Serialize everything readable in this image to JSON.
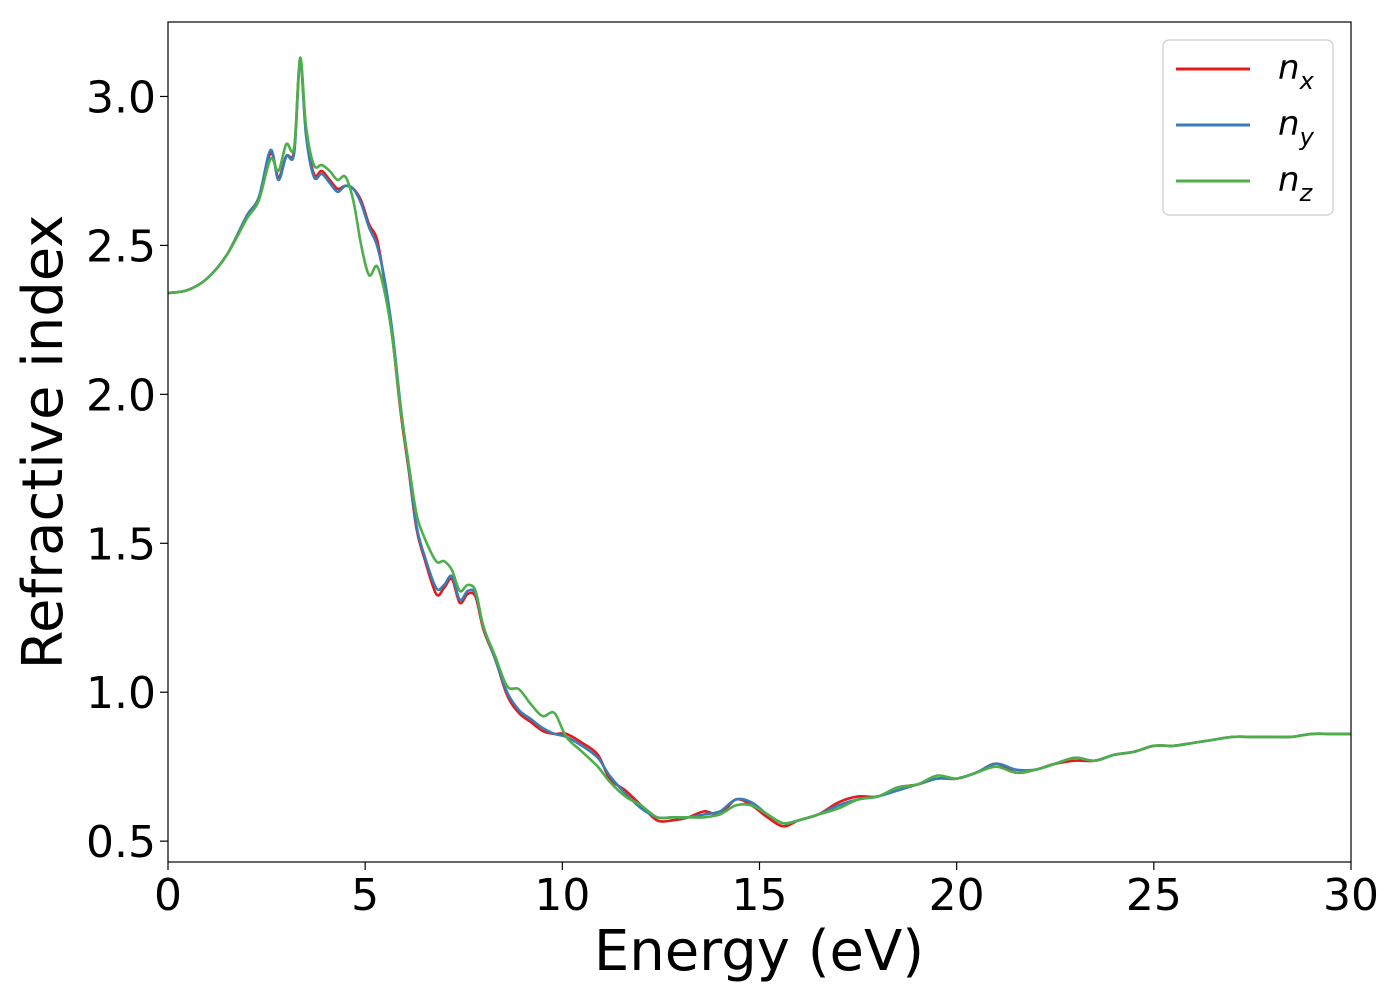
{
  "chart_data": {
    "type": "line",
    "title": "",
    "xlabel": "Energy (eV)",
    "ylabel": "Refractive index",
    "xlim": [
      0,
      30
    ],
    "ylim": [
      0.43,
      3.25
    ],
    "xticks": [
      "0",
      "5",
      "10",
      "15",
      "20",
      "25",
      "30"
    ],
    "yticks": [
      "0.5",
      "1.0",
      "1.5",
      "2.0",
      "2.5",
      "3.0"
    ],
    "grid": false,
    "legend_position": "top-right",
    "series": [
      {
        "name": "n_x",
        "legend_base": "n",
        "legend_sub": "x",
        "color": "#e41a1c",
        "x": [
          0,
          0.5,
          1.0,
          1.5,
          2.0,
          2.3,
          2.6,
          2.8,
          3.0,
          3.2,
          3.35,
          3.5,
          3.7,
          3.9,
          4.1,
          4.3,
          4.5,
          4.7,
          4.9,
          5.1,
          5.3,
          5.5,
          5.7,
          5.9,
          6.1,
          6.3,
          6.5,
          6.8,
          7.0,
          7.2,
          7.4,
          7.6,
          7.8,
          8.0,
          8.3,
          8.6,
          8.9,
          9.2,
          9.5,
          9.8,
          10.1,
          10.5,
          10.9,
          11.2,
          11.6,
          12.0,
          12.4,
          12.8,
          13.2,
          13.6,
          14.0,
          14.4,
          14.8,
          15.2,
          15.6,
          16.0,
          16.5,
          17.0,
          17.5,
          18.0,
          18.5,
          19.0,
          19.5,
          20.0,
          20.5,
          21.0,
          21.5,
          22.0,
          22.5,
          23.0,
          23.5,
          24.0,
          24.5,
          25.0,
          25.5,
          26.0,
          26.5,
          27.0,
          27.5,
          28.0,
          28.5,
          29.0,
          29.5,
          30.0
        ],
        "y": [
          2.34,
          2.35,
          2.39,
          2.47,
          2.6,
          2.66,
          2.81,
          2.73,
          2.8,
          2.82,
          3.12,
          2.88,
          2.74,
          2.75,
          2.72,
          2.69,
          2.7,
          2.69,
          2.65,
          2.57,
          2.52,
          2.37,
          2.18,
          1.94,
          1.75,
          1.55,
          1.45,
          1.33,
          1.35,
          1.38,
          1.3,
          1.33,
          1.32,
          1.21,
          1.11,
          0.99,
          0.93,
          0.9,
          0.87,
          0.86,
          0.86,
          0.83,
          0.79,
          0.71,
          0.67,
          0.62,
          0.57,
          0.57,
          0.58,
          0.6,
          0.59,
          0.64,
          0.62,
          0.58,
          0.55,
          0.57,
          0.59,
          0.63,
          0.65,
          0.65,
          0.68,
          0.69,
          0.71,
          0.71,
          0.73,
          0.76,
          0.73,
          0.74,
          0.76,
          0.77,
          0.77,
          0.79,
          0.8,
          0.82,
          0.82,
          0.83,
          0.84,
          0.85,
          0.85,
          0.85,
          0.85,
          0.86,
          0.86,
          0.86
        ]
      },
      {
        "name": "n_y",
        "legend_base": "n",
        "legend_sub": "y",
        "color": "#377eb8",
        "x": [
          0,
          0.5,
          1.0,
          1.5,
          2.0,
          2.3,
          2.6,
          2.8,
          3.0,
          3.2,
          3.35,
          3.5,
          3.7,
          3.9,
          4.1,
          4.3,
          4.5,
          4.7,
          4.9,
          5.1,
          5.3,
          5.5,
          5.7,
          5.9,
          6.1,
          6.3,
          6.5,
          6.8,
          7.0,
          7.2,
          7.4,
          7.6,
          7.8,
          8.0,
          8.3,
          8.6,
          8.9,
          9.2,
          9.5,
          9.8,
          10.1,
          10.5,
          10.9,
          11.2,
          11.6,
          12.0,
          12.4,
          12.8,
          13.2,
          13.6,
          14.0,
          14.4,
          14.8,
          15.2,
          15.6,
          16.0,
          16.5,
          17.0,
          17.5,
          18.0,
          18.5,
          19.0,
          19.5,
          20.0,
          20.5,
          21.0,
          21.5,
          22.0,
          22.5,
          23.0,
          23.5,
          24.0,
          24.5,
          25.0,
          25.5,
          26.0,
          26.5,
          27.0,
          27.5,
          28.0,
          28.5,
          29.0,
          29.5,
          30.0
        ],
        "y": [
          2.34,
          2.35,
          2.39,
          2.47,
          2.6,
          2.66,
          2.82,
          2.72,
          2.8,
          2.81,
          3.12,
          2.87,
          2.73,
          2.74,
          2.71,
          2.68,
          2.7,
          2.69,
          2.64,
          2.56,
          2.5,
          2.38,
          2.2,
          1.96,
          1.76,
          1.56,
          1.46,
          1.35,
          1.36,
          1.39,
          1.31,
          1.34,
          1.33,
          1.22,
          1.11,
          1.0,
          0.94,
          0.91,
          0.88,
          0.86,
          0.85,
          0.82,
          0.78,
          0.72,
          0.66,
          0.61,
          0.58,
          0.58,
          0.58,
          0.59,
          0.6,
          0.64,
          0.63,
          0.59,
          0.56,
          0.57,
          0.59,
          0.62,
          0.64,
          0.65,
          0.67,
          0.69,
          0.71,
          0.71,
          0.73,
          0.76,
          0.74,
          0.74,
          0.76,
          0.78,
          0.77,
          0.79,
          0.8,
          0.82,
          0.82,
          0.83,
          0.84,
          0.85,
          0.85,
          0.85,
          0.85,
          0.86,
          0.86,
          0.86
        ]
      },
      {
        "name": "n_z",
        "legend_base": "n",
        "legend_sub": "z",
        "color": "#4daf4a",
        "x": [
          0,
          0.5,
          1.0,
          1.5,
          2.0,
          2.3,
          2.6,
          2.8,
          3.0,
          3.2,
          3.35,
          3.5,
          3.7,
          3.9,
          4.1,
          4.3,
          4.5,
          4.7,
          4.9,
          5.1,
          5.3,
          5.5,
          5.7,
          5.9,
          6.1,
          6.3,
          6.5,
          6.8,
          7.0,
          7.2,
          7.4,
          7.6,
          7.8,
          8.0,
          8.3,
          8.6,
          8.9,
          9.2,
          9.5,
          9.8,
          10.1,
          10.5,
          10.9,
          11.2,
          11.6,
          12.0,
          12.4,
          12.8,
          13.2,
          13.6,
          14.0,
          14.4,
          14.8,
          15.2,
          15.6,
          16.0,
          16.5,
          17.0,
          17.5,
          18.0,
          18.5,
          19.0,
          19.5,
          20.0,
          20.5,
          21.0,
          21.5,
          22.0,
          22.5,
          23.0,
          23.5,
          24.0,
          24.5,
          25.0,
          25.5,
          26.0,
          26.5,
          27.0,
          27.5,
          28.0,
          28.5,
          29.0,
          29.5,
          30.0
        ],
        "y": [
          2.34,
          2.35,
          2.39,
          2.47,
          2.59,
          2.65,
          2.79,
          2.75,
          2.84,
          2.83,
          3.13,
          2.9,
          2.77,
          2.77,
          2.75,
          2.72,
          2.73,
          2.65,
          2.5,
          2.4,
          2.43,
          2.34,
          2.18,
          1.95,
          1.77,
          1.6,
          1.52,
          1.44,
          1.44,
          1.41,
          1.34,
          1.36,
          1.34,
          1.22,
          1.12,
          1.02,
          1.01,
          0.96,
          0.92,
          0.93,
          0.85,
          0.8,
          0.75,
          0.7,
          0.65,
          0.62,
          0.58,
          0.58,
          0.58,
          0.58,
          0.59,
          0.62,
          0.62,
          0.59,
          0.56,
          0.57,
          0.59,
          0.61,
          0.64,
          0.65,
          0.68,
          0.69,
          0.72,
          0.71,
          0.73,
          0.75,
          0.73,
          0.74,
          0.76,
          0.78,
          0.77,
          0.79,
          0.8,
          0.82,
          0.82,
          0.83,
          0.84,
          0.85,
          0.85,
          0.85,
          0.85,
          0.86,
          0.86,
          0.86
        ]
      }
    ]
  }
}
